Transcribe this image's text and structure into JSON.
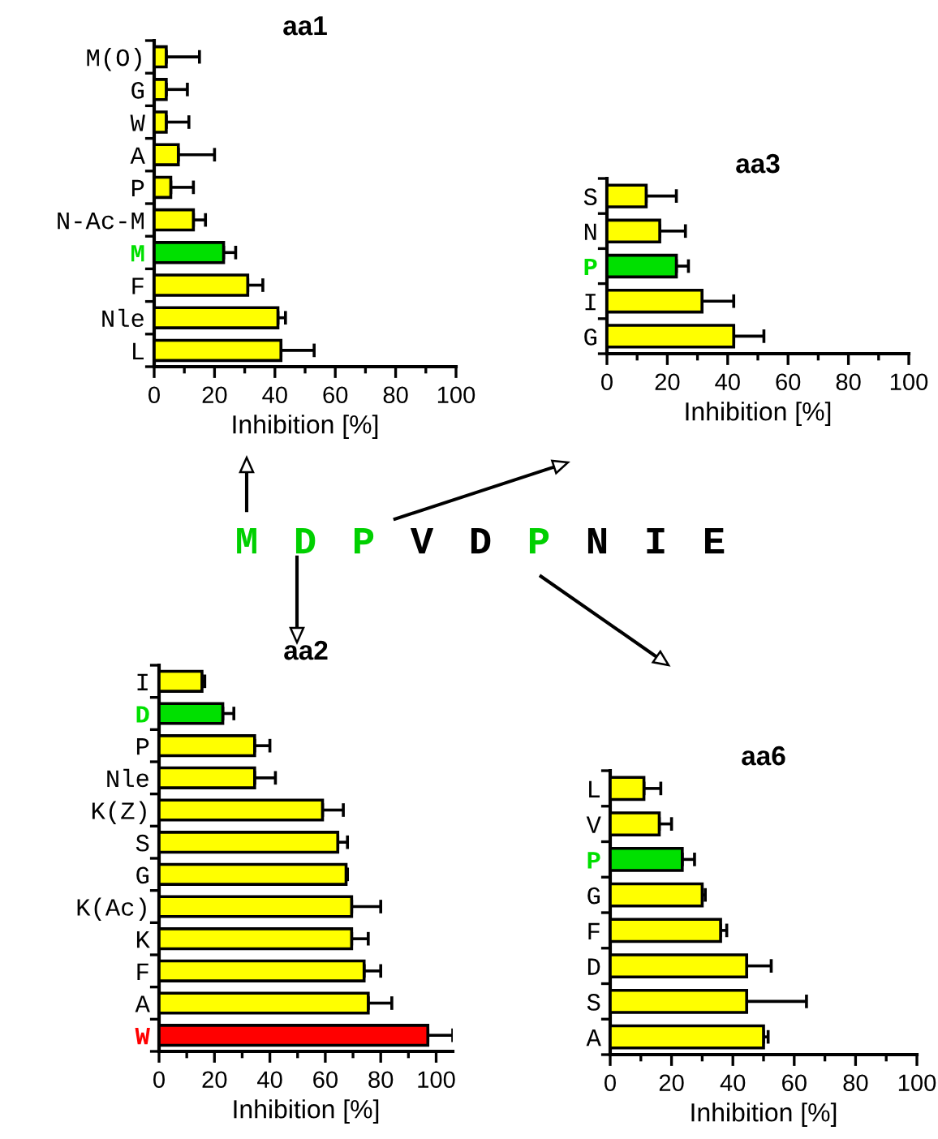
{
  "chart_data": [
    {
      "type": "bar",
      "title": "aa1",
      "orientation": "horizontal",
      "xlabel": "Inhibition [%]",
      "categories": [
        "M(O)",
        "G",
        "W",
        "A",
        "P",
        "N-Ac-M",
        "M",
        "F",
        "Nle",
        "L"
      ],
      "values": [
        4,
        4,
        4,
        8,
        5.5,
        13,
        23,
        31,
        41,
        42
      ],
      "errors": [
        11,
        7,
        7.5,
        12,
        7.5,
        4,
        4,
        5,
        2.5,
        11
      ],
      "colors": [
        "#ffff00",
        "#ffff00",
        "#ffff00",
        "#ffff00",
        "#ffff00",
        "#ffff00",
        "#00e000",
        "#ffff00",
        "#ffff00",
        "#ffff00"
      ],
      "xlim": [
        0,
        100
      ],
      "xticks": [
        0,
        20,
        40,
        60,
        80,
        100
      ],
      "grid": false,
      "legend": false
    },
    {
      "type": "bar",
      "title": "aa3",
      "orientation": "horizontal",
      "xlabel": "Inhibition [%]",
      "categories": [
        "S",
        "N",
        "P",
        "I",
        "G"
      ],
      "values": [
        13,
        17.5,
        23,
        31.5,
        42
      ],
      "errors": [
        10,
        8.5,
        4,
        10.5,
        10
      ],
      "colors": [
        "#ffff00",
        "#ffff00",
        "#00e000",
        "#ffff00",
        "#ffff00"
      ],
      "xlim": [
        0,
        100
      ],
      "xticks": [
        0,
        20,
        40,
        60,
        80,
        100
      ],
      "grid": false,
      "legend": false
    },
    {
      "type": "other",
      "categories": [
        "M",
        "D",
        "P",
        "V",
        "D",
        "P",
        "N",
        "I",
        "E"
      ],
      "colors": [
        "#00d000",
        "#00d000",
        "#00d000",
        "#000000",
        "#000000",
        "#00d000",
        "#000000",
        "#000000",
        "#000000"
      ]
    },
    {
      "type": "bar",
      "title": "aa2",
      "orientation": "horizontal",
      "xlabel": "Inhibition [%]",
      "categories": [
        "I",
        "D",
        "P",
        "Nle",
        "K(Z)",
        "S",
        "G",
        "K(Ac)",
        "K",
        "F",
        "A",
        "W"
      ],
      "values": [
        15.5,
        23,
        34.5,
        34.5,
        59,
        64.5,
        67.5,
        69.5,
        69.5,
        74,
        75.5,
        97
      ],
      "errors": [
        1,
        4,
        5.5,
        7.5,
        7.5,
        3.5,
        0.5,
        10.5,
        6,
        6,
        8.5,
        9
      ],
      "colors": [
        "#ffff00",
        "#00e000",
        "#ffff00",
        "#ffff00",
        "#ffff00",
        "#ffff00",
        "#ffff00",
        "#ffff00",
        "#ffff00",
        "#ffff00",
        "#ffff00",
        "#ff0000"
      ],
      "xlim": [
        0,
        106
      ],
      "xticks": [
        0,
        20,
        40,
        60,
        80,
        100
      ],
      "grid": false,
      "legend": false
    },
    {
      "type": "bar",
      "title": "aa6",
      "orientation": "horizontal",
      "xlabel": "Inhibition [%]",
      "categories": [
        "L",
        "V",
        "P",
        "G",
        "F",
        "D",
        "S",
        "A"
      ],
      "values": [
        11,
        16,
        23.5,
        30,
        36,
        44.5,
        44.5,
        50
      ],
      "errors": [
        5.5,
        4,
        4,
        1,
        2,
        8,
        19.5,
        1.5
      ],
      "colors": [
        "#ffff00",
        "#ffff00",
        "#00e000",
        "#ffff00",
        "#ffff00",
        "#ffff00",
        "#ffff00",
        "#ffff00"
      ],
      "xlim": [
        0,
        100
      ],
      "xticks": [
        0,
        20,
        40,
        60,
        80,
        100
      ],
      "grid": false,
      "legend": false
    }
  ]
}
